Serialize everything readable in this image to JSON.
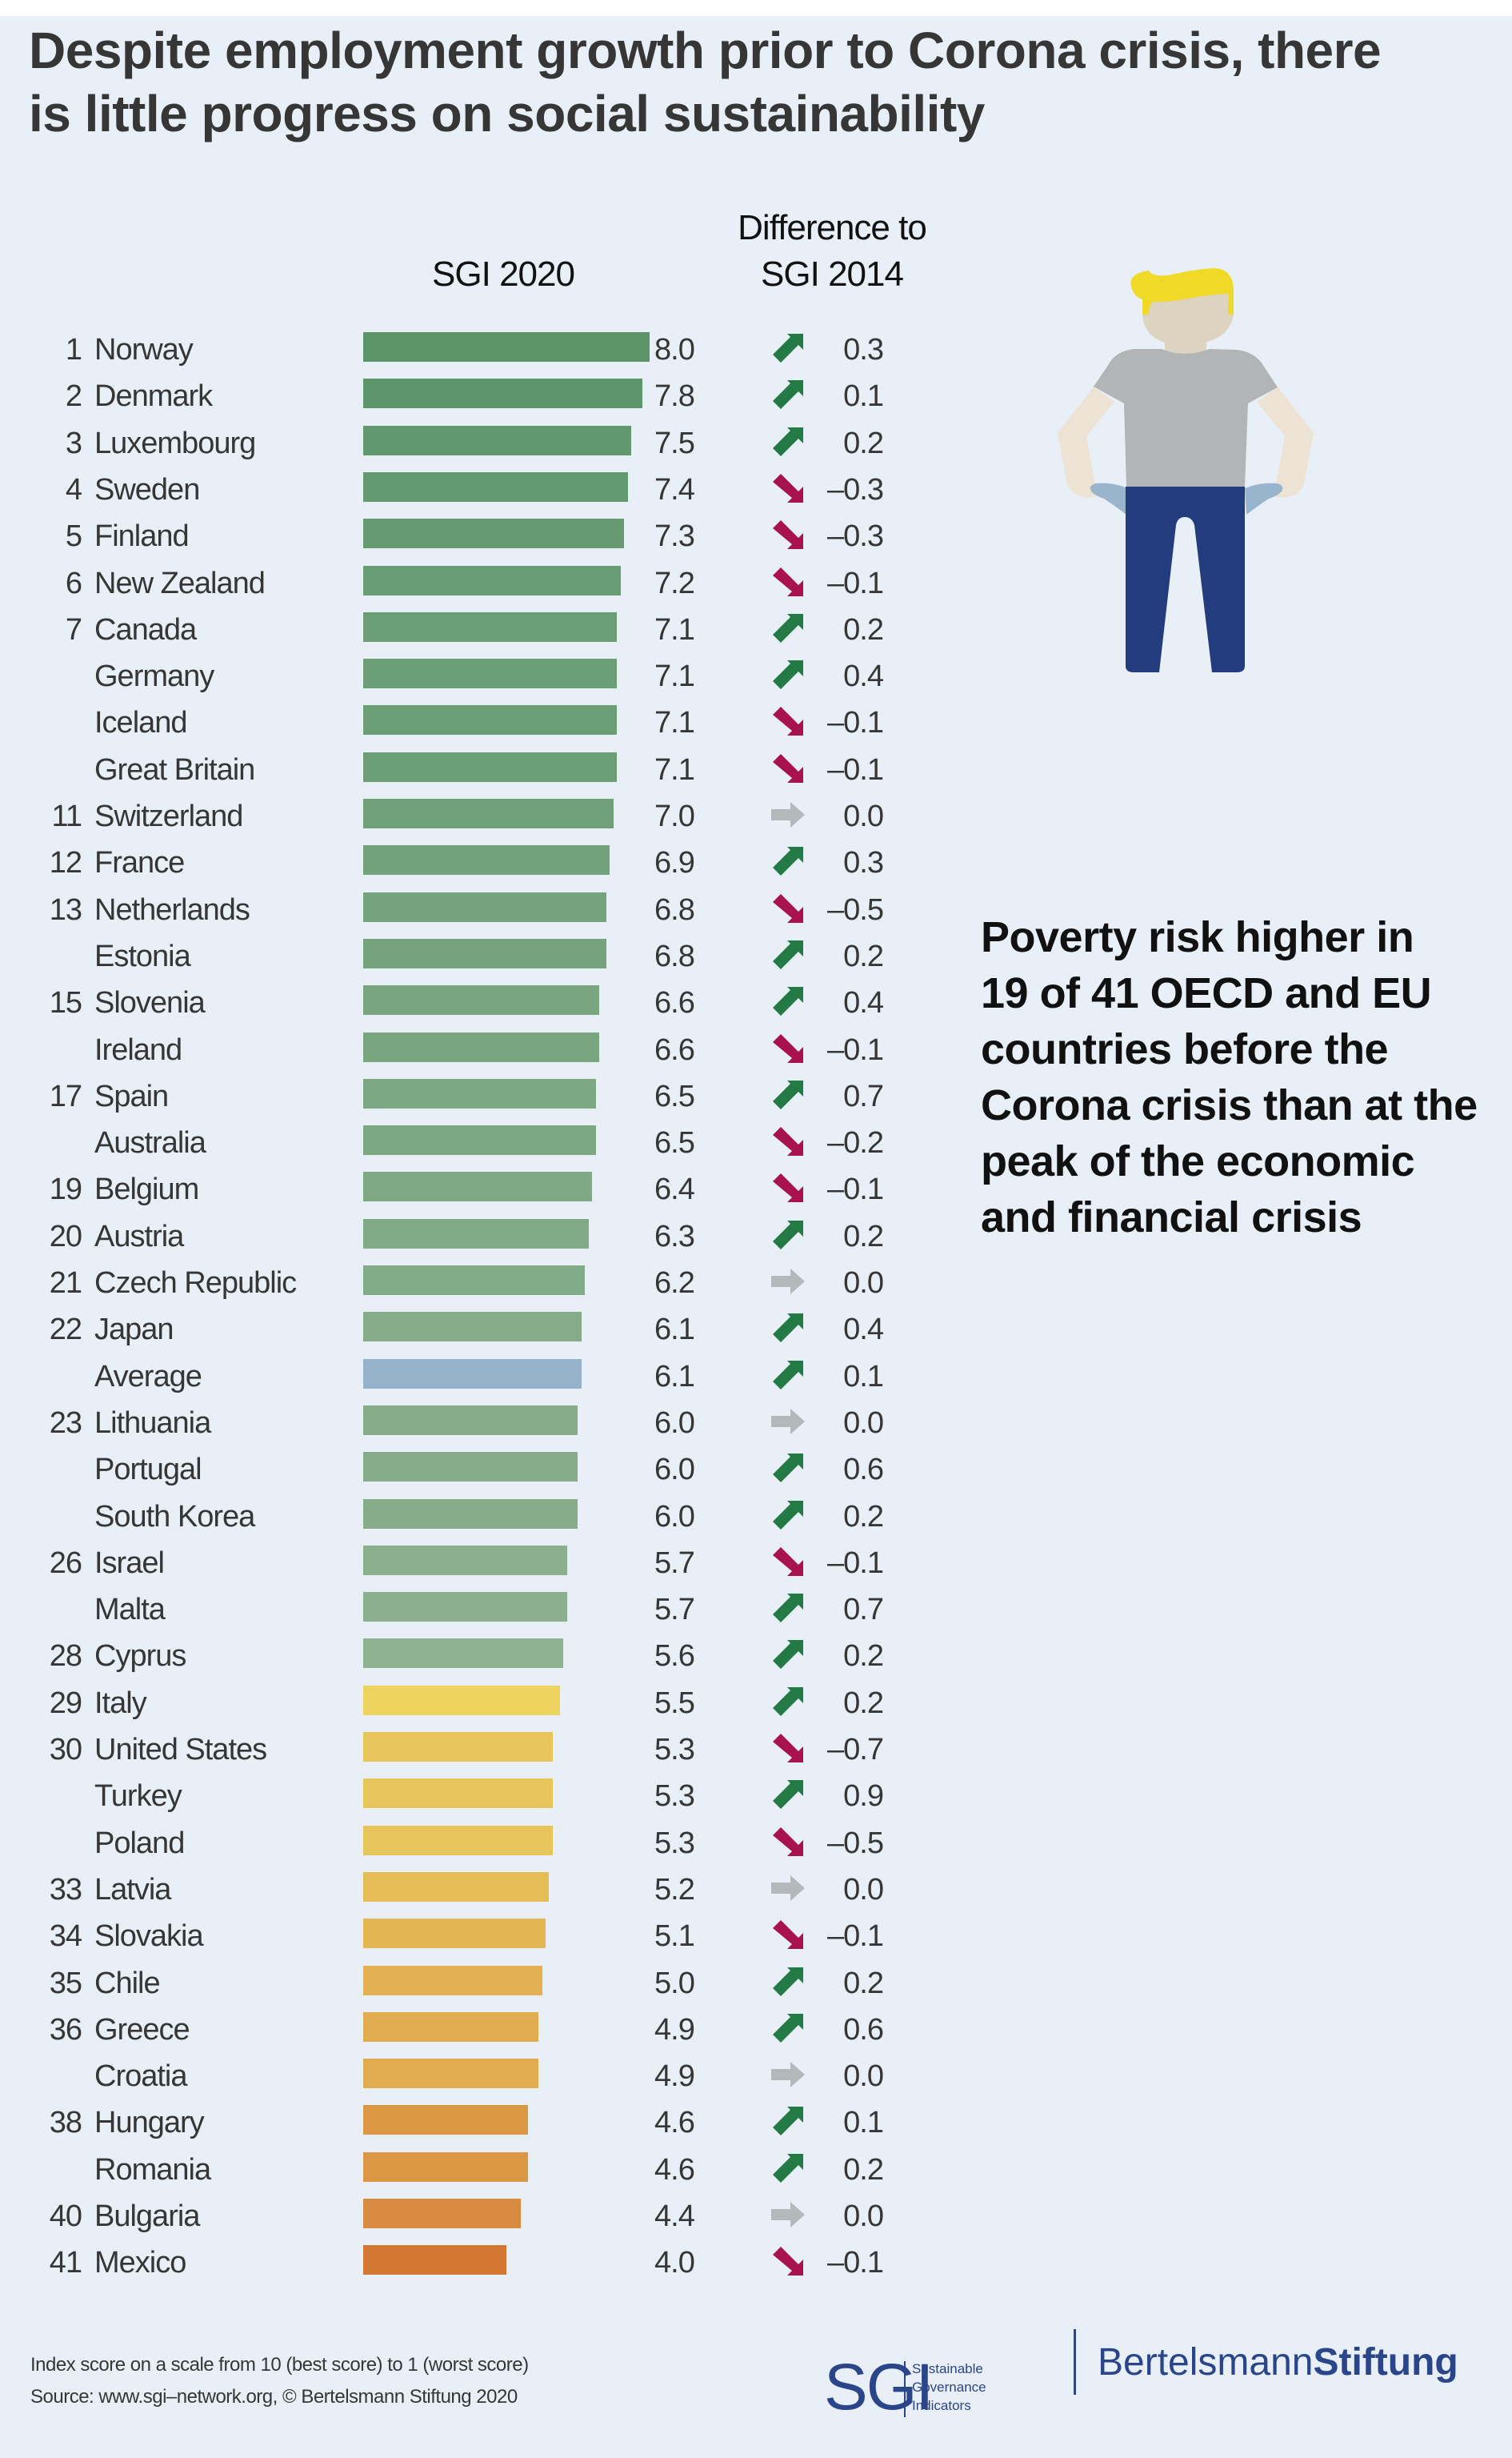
{
  "title": {
    "line1": "Despite employment growth prior to Corona crisis, there",
    "line2": "is little progress on social sustainability"
  },
  "headers": {
    "sgi2020": "SGI 2020",
    "diff_line1": "Difference to",
    "diff_line2": "SGI 2014"
  },
  "colors": {
    "background": "#e8eff6",
    "arrow_up": "#237a45",
    "arrow_down": "#a8134e",
    "arrow_neutral": "#b5b8ba",
    "average_bar": "#96b3cc",
    "logo_navy": "#2a4589"
  },
  "chart_data": {
    "type": "bar",
    "orientation": "horizontal",
    "title": "SGI 2020",
    "xlim": [
      0,
      10
    ],
    "xlabel": "Index score on a scale from 10 (best score) to 1 (worst score)",
    "rows": [
      {
        "rank": "1",
        "country": "Norway",
        "score": 8.0,
        "score_label": "8.0",
        "diff": 0.3,
        "diff_label": "0.3",
        "trend": "up",
        "color": "#5b9467"
      },
      {
        "rank": "2",
        "country": "Denmark",
        "score": 7.8,
        "score_label": "7.8",
        "diff": 0.1,
        "diff_label": "0.1",
        "trend": "up",
        "color": "#5d966a"
      },
      {
        "rank": "3",
        "country": "Luxembourg",
        "score": 7.5,
        "score_label": "7.5",
        "diff": 0.2,
        "diff_label": "0.2",
        "trend": "up",
        "color": "#62986d"
      },
      {
        "rank": "4",
        "country": "Sweden",
        "score": 7.4,
        "score_label": "7.4",
        "diff": -0.3,
        "diff_label": "–0.3",
        "trend": "down",
        "color": "#649a6f"
      },
      {
        "rank": "5",
        "country": "Finland",
        "score": 7.3,
        "score_label": "7.3",
        "diff": -0.3,
        "diff_label": "–0.3",
        "trend": "down",
        "color": "#669b71"
      },
      {
        "rank": "6",
        "country": "New Zealand",
        "score": 7.2,
        "score_label": "7.2",
        "diff": -0.1,
        "diff_label": "–0.1",
        "trend": "down",
        "color": "#699d73"
      },
      {
        "rank": "7",
        "country": "Canada",
        "score": 7.1,
        "score_label": "7.1",
        "diff": 0.2,
        "diff_label": "0.2",
        "trend": "up",
        "color": "#6b9e75"
      },
      {
        "rank": "",
        "country": "Germany",
        "score": 7.1,
        "score_label": "7.1",
        "diff": 0.4,
        "diff_label": "0.4",
        "trend": "up",
        "color": "#6b9e75"
      },
      {
        "rank": "",
        "country": "Iceland",
        "score": 7.1,
        "score_label": "7.1",
        "diff": -0.1,
        "diff_label": "–0.1",
        "trend": "down",
        "color": "#6b9e75"
      },
      {
        "rank": "",
        "country": "Great Britain",
        "score": 7.1,
        "score_label": "7.1",
        "diff": -0.1,
        "diff_label": "–0.1",
        "trend": "down",
        "color": "#6b9e75"
      },
      {
        "rank": "11",
        "country": "Switzerland",
        "score": 7.0,
        "score_label": "7.0",
        "diff": 0.0,
        "diff_label": "0.0",
        "trend": "neutral",
        "color": "#6fa078"
      },
      {
        "rank": "12",
        "country": "France",
        "score": 6.9,
        "score_label": "6.9",
        "diff": 0.3,
        "diff_label": "0.3",
        "trend": "up",
        "color": "#72a27a"
      },
      {
        "rank": "13",
        "country": "Netherlands",
        "score": 6.8,
        "score_label": "6.8",
        "diff": -0.5,
        "diff_label": "–0.5",
        "trend": "down",
        "color": "#75a47c"
      },
      {
        "rank": "",
        "country": "Estonia",
        "score": 6.8,
        "score_label": "6.8",
        "diff": 0.2,
        "diff_label": "0.2",
        "trend": "up",
        "color": "#75a47c"
      },
      {
        "rank": "15",
        "country": "Slovenia",
        "score": 6.6,
        "score_label": "6.6",
        "diff": 0.4,
        "diff_label": "0.4",
        "trend": "up",
        "color": "#79a67f"
      },
      {
        "rank": "",
        "country": "Ireland",
        "score": 6.6,
        "score_label": "6.6",
        "diff": -0.1,
        "diff_label": "–0.1",
        "trend": "down",
        "color": "#79a67f"
      },
      {
        "rank": "17",
        "country": "Spain",
        "score": 6.5,
        "score_label": "6.5",
        "diff": 0.7,
        "diff_label": "0.7",
        "trend": "up",
        "color": "#7ba781"
      },
      {
        "rank": "",
        "country": "Australia",
        "score": 6.5,
        "score_label": "6.5",
        "diff": -0.2,
        "diff_label": "–0.2",
        "trend": "down",
        "color": "#7ba781"
      },
      {
        "rank": "19",
        "country": "Belgium",
        "score": 6.4,
        "score_label": "6.4",
        "diff": -0.1,
        "diff_label": "–0.1",
        "trend": "down",
        "color": "#7ea983"
      },
      {
        "rank": "20",
        "country": "Austria",
        "score": 6.3,
        "score_label": "6.3",
        "diff": 0.2,
        "diff_label": "0.2",
        "trend": "up",
        "color": "#80aa85"
      },
      {
        "rank": "21",
        "country": "Czech Republic",
        "score": 6.2,
        "score_label": "6.2",
        "diff": 0.0,
        "diff_label": "0.0",
        "trend": "neutral",
        "color": "#82ab87"
      },
      {
        "rank": "22",
        "country": "Japan",
        "score": 6.1,
        "score_label": "6.1",
        "diff": 0.4,
        "diff_label": "0.4",
        "trend": "up",
        "color": "#84ac88"
      },
      {
        "rank": "",
        "country": "Average",
        "score": 6.1,
        "score_label": "6.1",
        "diff": 0.1,
        "diff_label": "0.1",
        "trend": "up",
        "color": "#96b3cc"
      },
      {
        "rank": "23",
        "country": "Lithuania",
        "score": 6.0,
        "score_label": "6.0",
        "diff": 0.0,
        "diff_label": "0.0",
        "trend": "neutral",
        "color": "#86ad8a"
      },
      {
        "rank": "",
        "country": "Portugal",
        "score": 6.0,
        "score_label": "6.0",
        "diff": 0.6,
        "diff_label": "0.6",
        "trend": "up",
        "color": "#86ad8a"
      },
      {
        "rank": "",
        "country": "South Korea",
        "score": 6.0,
        "score_label": "6.0",
        "diff": 0.2,
        "diff_label": "0.2",
        "trend": "up",
        "color": "#86ad8a"
      },
      {
        "rank": "26",
        "country": "Israel",
        "score": 5.7,
        "score_label": "5.7",
        "diff": -0.1,
        "diff_label": "–0.1",
        "trend": "down",
        "color": "#8cb08f"
      },
      {
        "rank": "",
        "country": "Malta",
        "score": 5.7,
        "score_label": "5.7",
        "diff": 0.7,
        "diff_label": "0.7",
        "trend": "up",
        "color": "#8cb08f"
      },
      {
        "rank": "28",
        "country": "Cyprus",
        "score": 5.6,
        "score_label": "5.6",
        "diff": 0.2,
        "diff_label": "0.2",
        "trend": "up",
        "color": "#8fb292"
      },
      {
        "rank": "29",
        "country": "Italy",
        "score": 5.5,
        "score_label": "5.5",
        "diff": 0.2,
        "diff_label": "0.2",
        "trend": "up",
        "color": "#eed35e"
      },
      {
        "rank": "30",
        "country": "United States",
        "score": 5.3,
        "score_label": "5.3",
        "diff": -0.7,
        "diff_label": "–0.7",
        "trend": "down",
        "color": "#e8c55a"
      },
      {
        "rank": "",
        "country": "Turkey",
        "score": 5.3,
        "score_label": "5.3",
        "diff": 0.9,
        "diff_label": "0.9",
        "trend": "up",
        "color": "#e8c55a"
      },
      {
        "rank": "",
        "country": "Poland",
        "score": 5.3,
        "score_label": "5.3",
        "diff": -0.5,
        "diff_label": "–0.5",
        "trend": "down",
        "color": "#e8c55a"
      },
      {
        "rank": "33",
        "country": "Latvia",
        "score": 5.2,
        "score_label": "5.2",
        "diff": 0.0,
        "diff_label": "0.0",
        "trend": "neutral",
        "color": "#e6bc56"
      },
      {
        "rank": "34",
        "country": "Slovakia",
        "score": 5.1,
        "score_label": "5.1",
        "diff": -0.1,
        "diff_label": "–0.1",
        "trend": "down",
        "color": "#e4b553"
      },
      {
        "rank": "35",
        "country": "Chile",
        "score": 5.0,
        "score_label": "5.0",
        "diff": 0.2,
        "diff_label": "0.2",
        "trend": "up",
        "color": "#e3b152"
      },
      {
        "rank": "36",
        "country": "Greece",
        "score": 4.9,
        "score_label": "4.9",
        "diff": 0.6,
        "diff_label": "0.6",
        "trend": "up",
        "color": "#e1ab4f"
      },
      {
        "rank": "",
        "country": "Croatia",
        "score": 4.9,
        "score_label": "4.9",
        "diff": 0.0,
        "diff_label": "0.0",
        "trend": "neutral",
        "color": "#e1ab4f"
      },
      {
        "rank": "38",
        "country": "Hungary",
        "score": 4.6,
        "score_label": "4.6",
        "diff": 0.1,
        "diff_label": "0.1",
        "trend": "up",
        "color": "#dc9744"
      },
      {
        "rank": "",
        "country": "Romania",
        "score": 4.6,
        "score_label": "4.6",
        "diff": 0.2,
        "diff_label": "0.2",
        "trend": "up",
        "color": "#dc9744"
      },
      {
        "rank": "40",
        "country": "Bulgaria",
        "score": 4.4,
        "score_label": "4.4",
        "diff": 0.0,
        "diff_label": "0.0",
        "trend": "neutral",
        "color": "#d98c3f"
      },
      {
        "rank": "41",
        "country": "Mexico",
        "score": 4.0,
        "score_label": "4.0",
        "diff": -0.1,
        "diff_label": "–0.1",
        "trend": "down",
        "color": "#d47733"
      }
    ]
  },
  "poverty_text": {
    "lines": [
      "Poverty risk higher in",
      "19 of 41 OECD and EU",
      "countries before the",
      "Corona crisis than at the",
      "peak of the economic",
      "and financial crisis"
    ]
  },
  "illustration": {
    "subject": "person-with-empty-pockets",
    "colors": {
      "hair": "#f0da27",
      "face": "#dcd3c1",
      "arms": "#ede3d5",
      "shirt": "#b2b5b6",
      "pockets": "#98b5cd",
      "pants": "#233c7e"
    }
  },
  "footer": {
    "scale_note": "Index score on a scale from 10 (best score) to 1 (worst score)",
    "source": "Source: www.sgi–network.org, © Bertelsmann Stiftung 2020",
    "sgi_logo": {
      "letters": "SGI",
      "line1": "Sustainable",
      "line2": "Governance",
      "line3": "Indicators"
    },
    "bertelsmann_logo": {
      "part1": "Bertelsmann",
      "part2": "Stiftung"
    }
  }
}
